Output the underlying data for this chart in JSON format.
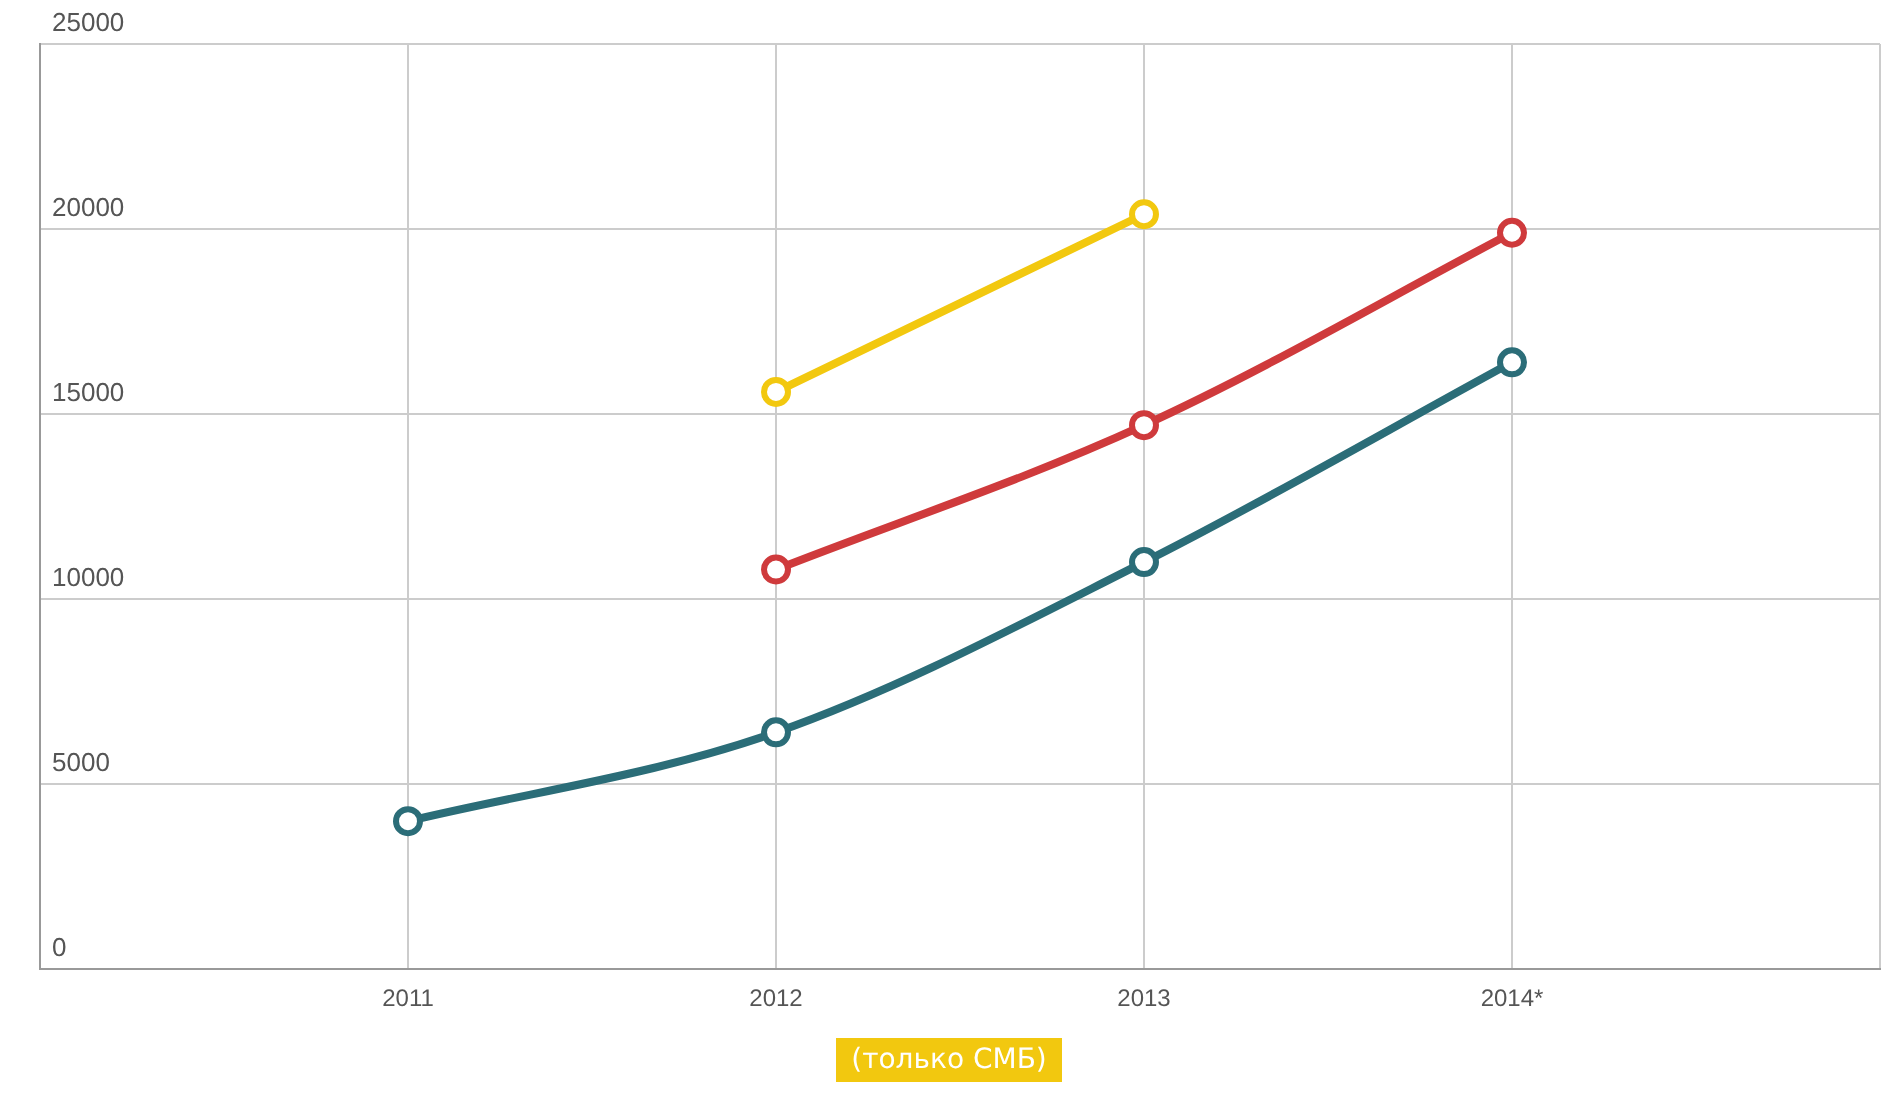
{
  "chart_data": {
    "type": "line",
    "categories": [
      null,
      "2011",
      "2012",
      "2013",
      "2014*",
      null
    ],
    "series": [
      {
        "name": "(только СМБ)",
        "color": "#f2c80f",
        "values": [
          null,
          null,
          15600,
          20400,
          null,
          null
        ]
      },
      {
        "color": "#cf3a3c",
        "values": [
          null,
          null,
          10800,
          14700,
          19900,
          null
        ]
      },
      {
        "color": "#2b6d78",
        "values": [
          null,
          4000,
          6400,
          11000,
          16400,
          null
        ]
      }
    ],
    "ylim": [
      0,
      25000
    ],
    "yticks": [
      0,
      5000,
      10000,
      15000,
      20000,
      25000
    ],
    "grid": true,
    "legend": "bottom",
    "marker": "circle",
    "line_style": "solid"
  }
}
